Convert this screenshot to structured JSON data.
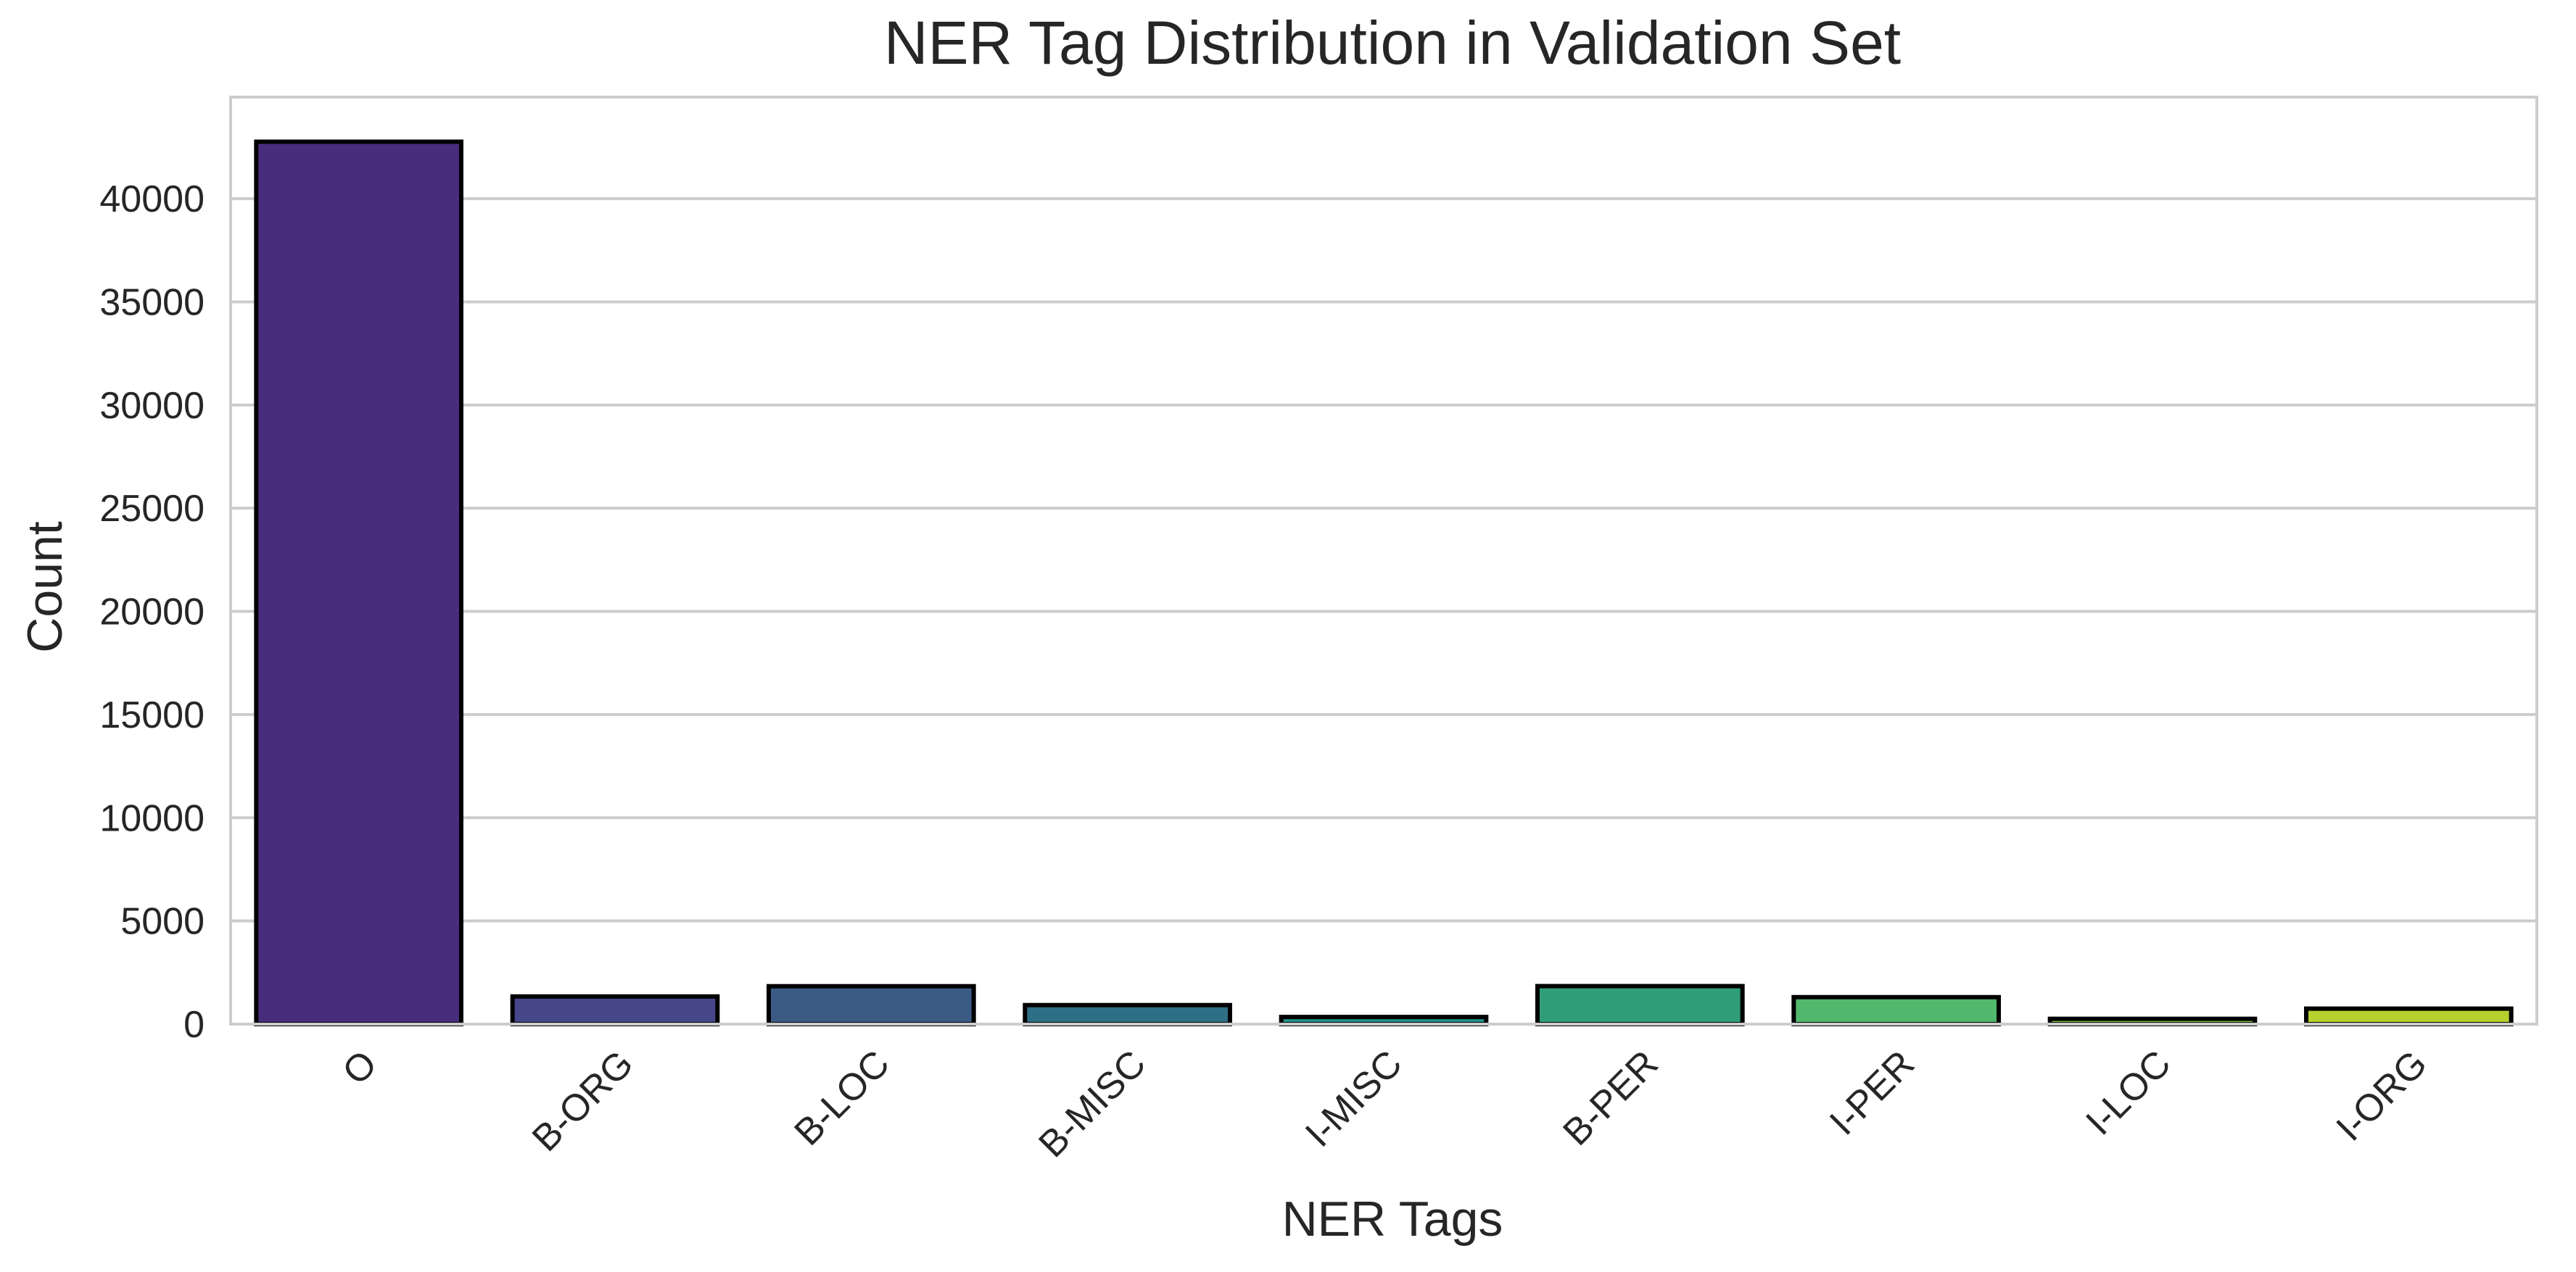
{
  "chart_data": {
    "type": "bar",
    "title": "NER Tag Distribution in Validation Set",
    "xlabel": "NER Tags",
    "ylabel": "Count",
    "categories": [
      "O",
      "B-ORG",
      "B-LOC",
      "B-MISC",
      "I-MISC",
      "B-PER",
      "I-PER",
      "I-LOC",
      "I-ORG"
    ],
    "values": [
      42759,
      1341,
      1837,
      922,
      346,
      1842,
      1307,
      257,
      751
    ],
    "ylim": [
      0,
      44920
    ],
    "yticks": [
      0,
      5000,
      10000,
      15000,
      20000,
      25000,
      30000,
      35000,
      40000
    ],
    "ytick_labels": [
      "0",
      "5000",
      "10000",
      "15000",
      "20000",
      "25000",
      "30000",
      "35000",
      "40000"
    ],
    "grid": "horizontal",
    "bar_colors": [
      "#472d7b",
      "#46478a",
      "#3b5b85",
      "#2f6f86",
      "#21918c",
      "#2e9d78",
      "#52b86d",
      "#88c949",
      "#b5d12e"
    ],
    "bar_edge_color": "#000000",
    "x_tick_rotation": 45
  }
}
